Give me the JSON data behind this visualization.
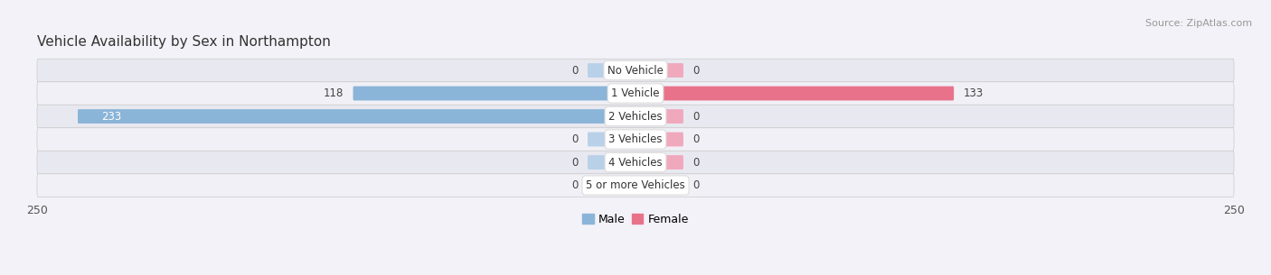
{
  "title": "Vehicle Availability by Sex in Northampton",
  "source": "Source: ZipAtlas.com",
  "categories": [
    "No Vehicle",
    "1 Vehicle",
    "2 Vehicles",
    "3 Vehicles",
    "4 Vehicles",
    "5 or more Vehicles"
  ],
  "male_values": [
    0,
    118,
    233,
    0,
    0,
    0
  ],
  "female_values": [
    0,
    133,
    0,
    0,
    0,
    0
  ],
  "male_color": "#8ab4d8",
  "female_color": "#e8728a",
  "male_color_light": "#b8d0e8",
  "female_color_light": "#f0a8bc",
  "male_label": "Male",
  "female_label": "Female",
  "xlim": 250,
  "bar_height": 0.62,
  "stub_size": 20,
  "bg_color": "#f2f2f8",
  "row_colors_odd": "#e8e8f0",
  "row_colors_even": "#f0f0f6",
  "label_color": "#444444",
  "title_color": "#333333",
  "source_color": "#999999",
  "title_fontsize": 11,
  "source_fontsize": 8,
  "value_fontsize": 8.5,
  "cat_fontsize": 8.5
}
